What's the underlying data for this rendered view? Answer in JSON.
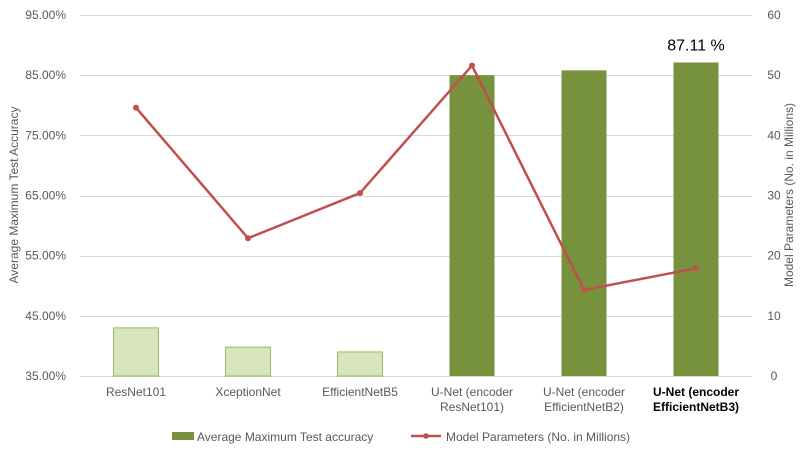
{
  "chart_data": {
    "type": "bar",
    "categories": [
      [
        "ResNet101"
      ],
      [
        "XceptionNet"
      ],
      [
        "EfficientNetB5"
      ],
      [
        "U-Net (encoder",
        "ResNet101)"
      ],
      [
        "U-Net (encoder",
        "EfficientNetB2)"
      ],
      [
        "U-Net (encoder",
        "EfficientNetB3)"
      ]
    ],
    "bold_category_index": 5,
    "series": [
      {
        "name": "Average Maximum Test accuracy",
        "type": "bar",
        "axis": "left",
        "values": [
          43.0,
          39.8,
          39.0,
          85.0,
          85.8,
          87.11
        ],
        "colors": [
          "#d8e4bc",
          "#d8e4bc",
          "#d8e4bc",
          "#76923c",
          "#76923c",
          "#76923c"
        ],
        "stroke": "#9bbb59"
      },
      {
        "name": "Model Parameters (No. in Millions)",
        "type": "line",
        "axis": "right",
        "values": [
          44.6,
          22.9,
          30.4,
          51.6,
          14.3,
          17.9
        ],
        "color": "#c0504d"
      }
    ],
    "ylabel": "Average Maximum Test Accuracy",
    "y2label": "Model Parameters (No. in Millions)",
    "ylim": [
      35,
      95
    ],
    "y2lim": [
      0,
      60
    ],
    "yticks": [
      "35.00%",
      "45.00%",
      "55.00%",
      "65.00%",
      "75.00%",
      "85.00%",
      "95.00%"
    ],
    "y2ticks": [
      "0",
      "10",
      "20",
      "30",
      "40",
      "50",
      "60"
    ],
    "annotation": "87.11 %",
    "annotation_index": 5,
    "grid": true,
    "legend_position": "bottom"
  }
}
